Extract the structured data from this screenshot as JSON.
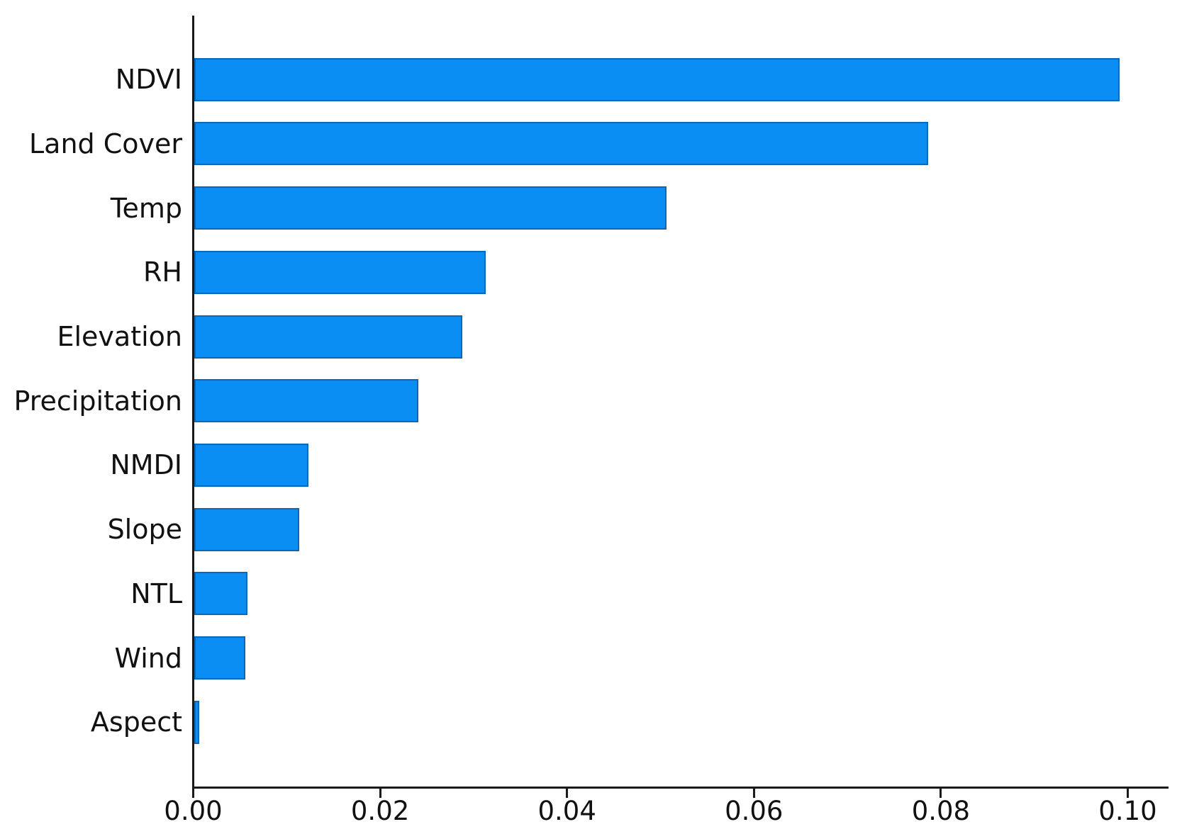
{
  "chart_data": {
    "type": "bar",
    "orientation": "horizontal",
    "title": "",
    "xlabel": "",
    "ylabel": "",
    "categories": [
      "NDVI",
      "Land Cover",
      "Temp",
      "RH",
      "Elevation",
      "Precipitation",
      "NMDI",
      "Slope",
      "NTL",
      "Wind",
      "Aspect"
    ],
    "values": [
      0.099,
      0.0785,
      0.0505,
      0.0312,
      0.0287,
      0.024,
      0.0122,
      0.0112,
      0.0057,
      0.0055,
      0.0005
    ],
    "x_ticks": [
      "0.00",
      "0.02",
      "0.04",
      "0.06",
      "0.08",
      "0.10"
    ],
    "x_tick_values": [
      0.0,
      0.02,
      0.04,
      0.06,
      0.08,
      0.1
    ],
    "xlim": [
      0,
      0.1043
    ],
    "grid": false,
    "legend": null,
    "bar_color": "#0a8ef4",
    "bar_edge_color": "#0e3a6e",
    "axis_color": "#1a1a1a",
    "background_color": "#ffffff"
  }
}
